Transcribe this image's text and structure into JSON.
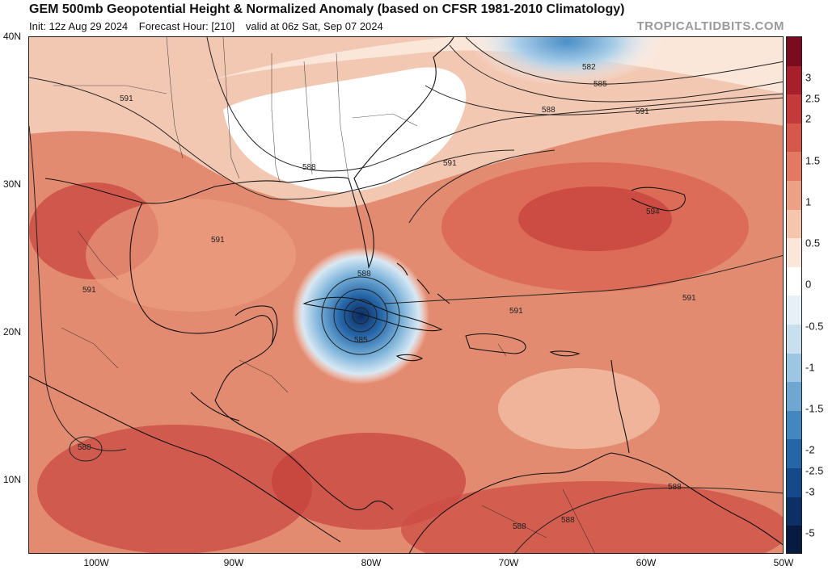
{
  "header": {
    "title": "GEM 500mb Geopotential Height & Normalized Anomaly (based on CFSR 1981-2010 Climatology)",
    "init": "Init: 12z Aug 29 2024",
    "forecast_hour": "Forecast Hour: [210]",
    "valid": "valid at 06z Sat, Sep 07 2024",
    "brand": "TROPICALTIDBITS.COM"
  },
  "axes": {
    "lat_labels": [
      "40N",
      "30N",
      "20N",
      "10N"
    ],
    "lon_labels": [
      "100W",
      "90W",
      "80W",
      "70W",
      "60W",
      "50W"
    ]
  },
  "contour_labels": [
    "591",
    "582",
    "585",
    "588",
    "591",
    "588",
    "591",
    "594",
    "591",
    "591",
    "588",
    "585",
    "591",
    "591",
    "588",
    "588",
    "588",
    "588"
  ],
  "colorbar": {
    "labels": [
      "3",
      "2.5",
      "2",
      "1.5",
      "1",
      "0.5",
      "0",
      "-0.5",
      "-1",
      "-1.5",
      "-2",
      "-2.5",
      "-3",
      "-5"
    ],
    "colors": [
      "#7a0c1f",
      "#a81f2c",
      "#c43a3a",
      "#d6584a",
      "#e27a63",
      "#eca184",
      "#f4c6ad",
      "#fbe6da",
      "#ffffff",
      "#e7f0f7",
      "#c8dfee",
      "#9dc6e2",
      "#6ea7d1",
      "#4387c0",
      "#2566a8",
      "#14498a",
      "#0c2f66",
      "#071a40"
    ]
  },
  "colors": {
    "anomaly_high": "#c9433e",
    "anomaly_mid": "#e48a6f",
    "anomaly_low": "#f6d2c0",
    "neutral": "#ffffff",
    "negative": "#3f86c2",
    "negative_core": "#0d2e66"
  }
}
